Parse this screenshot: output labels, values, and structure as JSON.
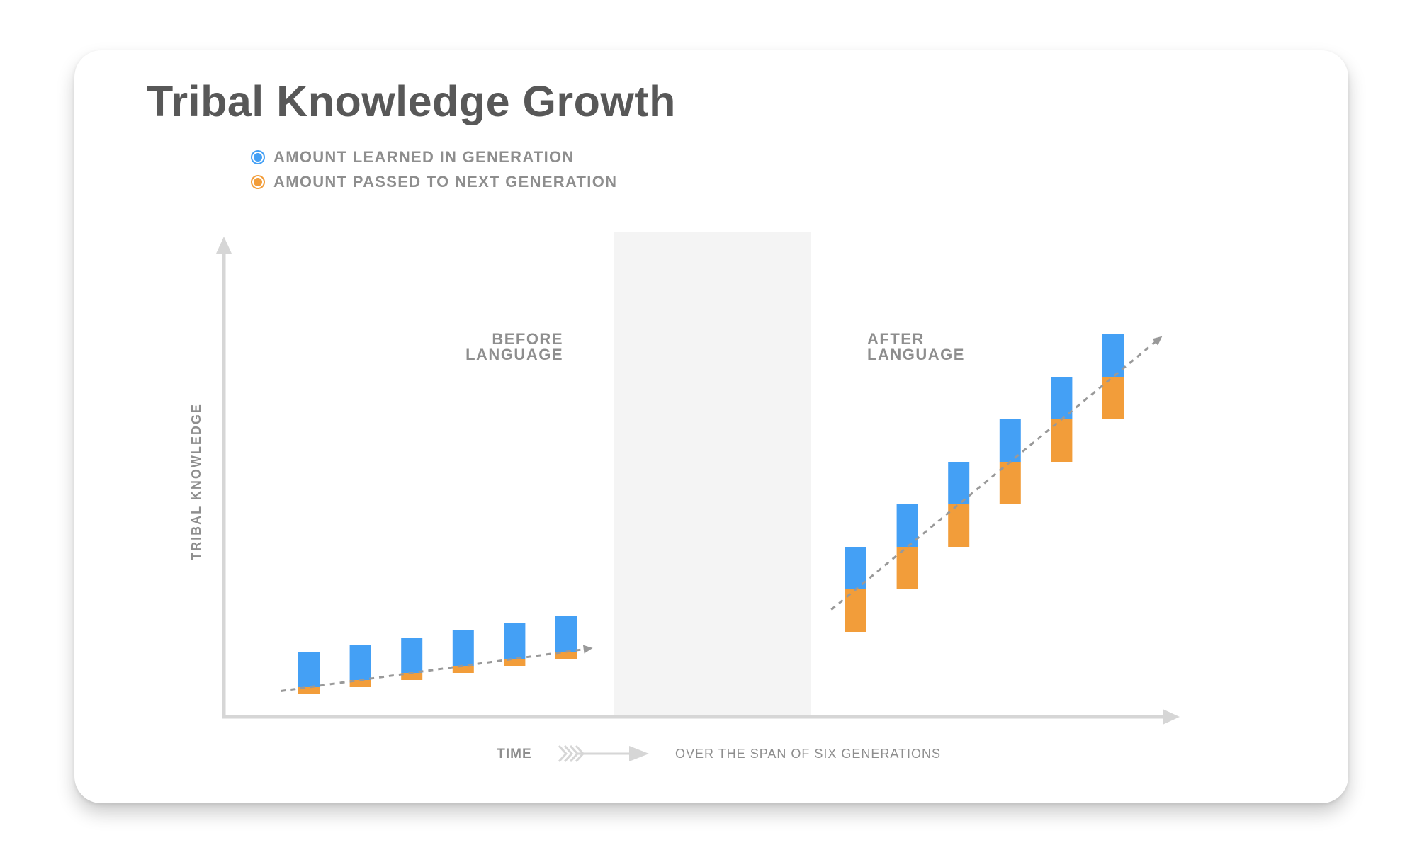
{
  "title": "Tribal Knowledge Growth",
  "legend": [
    {
      "label": "AMOUNT LEARNED IN GENERATION",
      "color": "#44A0F5"
    },
    {
      "label": "AMOUNT PASSED TO NEXT GENERATION",
      "color": "#F29D3A"
    }
  ],
  "chart_data": {
    "type": "bar",
    "stacked": true,
    "title": "Tribal Knowledge Growth",
    "ylabel": "TRIBAL KNOWLEDGE",
    "xlabel": "TIME",
    "xlabel_note": "OVER THE SPAN OF SIX GENERATIONS",
    "axis_ticks": "none",
    "grid": false,
    "legend_position": "top-left",
    "colors": {
      "learned": "#44A0F5",
      "passed": "#F29D3A",
      "axis": "#D6D6D6",
      "gap": "#F4F4F4",
      "trend": "#999999"
    },
    "panels": [
      {
        "label_lines": [
          "BEFORE",
          "LANGUAGE"
        ],
        "bars": [
          {
            "base": 3.2,
            "passed": 1,
            "learned": 5
          },
          {
            "base": 4.2,
            "passed": 1,
            "learned": 5
          },
          {
            "base": 5.2,
            "passed": 1,
            "learned": 5
          },
          {
            "base": 6.2,
            "passed": 1,
            "learned": 5
          },
          {
            "base": 7.2,
            "passed": 1,
            "learned": 5
          },
          {
            "base": 8.2,
            "passed": 1,
            "learned": 5
          }
        ]
      },
      {
        "label_lines": [
          "AFTER",
          "LANGUAGE"
        ],
        "bars": [
          {
            "base": 12,
            "passed": 6,
            "learned": 6
          },
          {
            "base": 18,
            "passed": 6,
            "learned": 6
          },
          {
            "base": 24,
            "passed": 6,
            "learned": 6
          },
          {
            "base": 30,
            "passed": 6,
            "learned": 6
          },
          {
            "base": 36,
            "passed": 6,
            "learned": 6
          },
          {
            "base": 42,
            "passed": 6,
            "learned": 6
          }
        ]
      }
    ]
  }
}
